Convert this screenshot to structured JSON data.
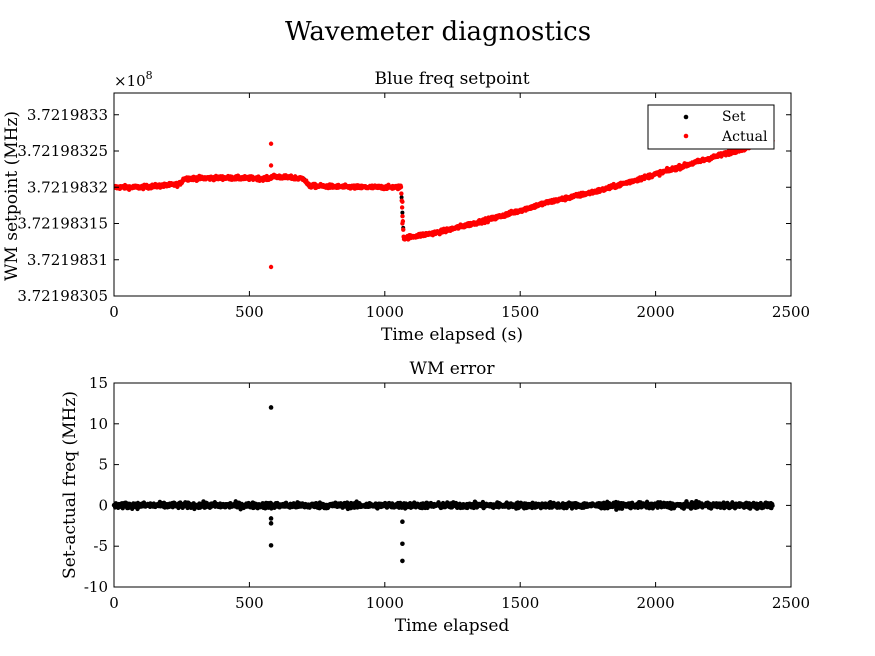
{
  "figure": {
    "title": "Wavemeter diagnostics"
  },
  "chart_data": [
    {
      "type": "scatter",
      "title": "Blue freq setpoint",
      "xlabel": "Time elapsed (s)",
      "ylabel": "WM setpoint (MHz)",
      "xlim": [
        0,
        2500
      ],
      "ylim": [
        372198305,
        372198333
      ],
      "x_ticks": [
        0,
        500,
        1000,
        1500,
        2000,
        2500
      ],
      "x_tick_labels": [
        "0",
        "500",
        "1000",
        "1500",
        "2000",
        "2500"
      ],
      "y_ticks": [
        372198305,
        372198310,
        372198315,
        372198320,
        372198325,
        372198330
      ],
      "y_tick_labels": [
        "3.72198305",
        "3.7219831",
        "3.72198315",
        "3.7219832",
        "3.72198325",
        "3.7219833"
      ],
      "y_exponent_label": "×10",
      "y_exponent_power": "8",
      "legend": {
        "placement": "top-right",
        "entries": [
          "Set",
          "Actual"
        ]
      },
      "series": [
        {
          "name": "Set",
          "color": "#000000",
          "x": [
            0,
            2432
          ],
          "y": [
            372198320,
            372198323
          ]
        },
        {
          "name": "Actual",
          "color": "#ff0000",
          "x": [
            0,
            100,
            240,
            260,
            400,
            575,
            583,
            700,
            720,
            900,
            1060,
            1070,
            1200,
            1400,
            1600,
            1800,
            2000,
            2200,
            2432
          ],
          "y": [
            372198320,
            372198320,
            372198320.4,
            372198321.2,
            372198321.3,
            372198321.2,
            372198321.5,
            372198321.2,
            372198320.2,
            372198320,
            372198320,
            372198313,
            372198313.8,
            372198315.7,
            372198317.9,
            372198319.6,
            372198321.8,
            372198324.0,
            372198326.5
          ],
          "outliers": [
            {
              "x": 580,
              "y": 372198326
            },
            {
              "x": 580,
              "y": 372198323
            },
            {
              "x": 580,
              "y": 372198309
            },
            {
              "x": 1065,
              "y": 372198318
            },
            {
              "x": 1065,
              "y": 372198315
            }
          ]
        }
      ]
    },
    {
      "type": "scatter",
      "title": "WM error",
      "xlabel": "Time elapsed",
      "ylabel": "Set-actual freq (MHz)",
      "xlim": [
        0,
        2500
      ],
      "ylim": [
        -10,
        15
      ],
      "x_ticks": [
        0,
        500,
        1000,
        1500,
        2000,
        2500
      ],
      "x_tick_labels": [
        "0",
        "500",
        "1000",
        "1500",
        "2000",
        "2500"
      ],
      "y_ticks": [
        -10,
        -5,
        0,
        5,
        10,
        15
      ],
      "y_tick_labels": [
        "-10",
        "-5",
        "0",
        "5",
        "10",
        "15"
      ],
      "series": [
        {
          "name": "",
          "color": "#000000",
          "x_range": [
            0,
            2432
          ],
          "baseline": 0,
          "noise_amplitude": 0.6,
          "outliers": [
            {
              "x": 580,
              "y": 12
            },
            {
              "x": 580,
              "y": -1.6
            },
            {
              "x": 580,
              "y": -2.2
            },
            {
              "x": 580,
              "y": -4.9
            },
            {
              "x": 1065,
              "y": -2
            },
            {
              "x": 1065,
              "y": -4.7
            },
            {
              "x": 1065,
              "y": -6.8
            }
          ]
        }
      ]
    }
  ]
}
